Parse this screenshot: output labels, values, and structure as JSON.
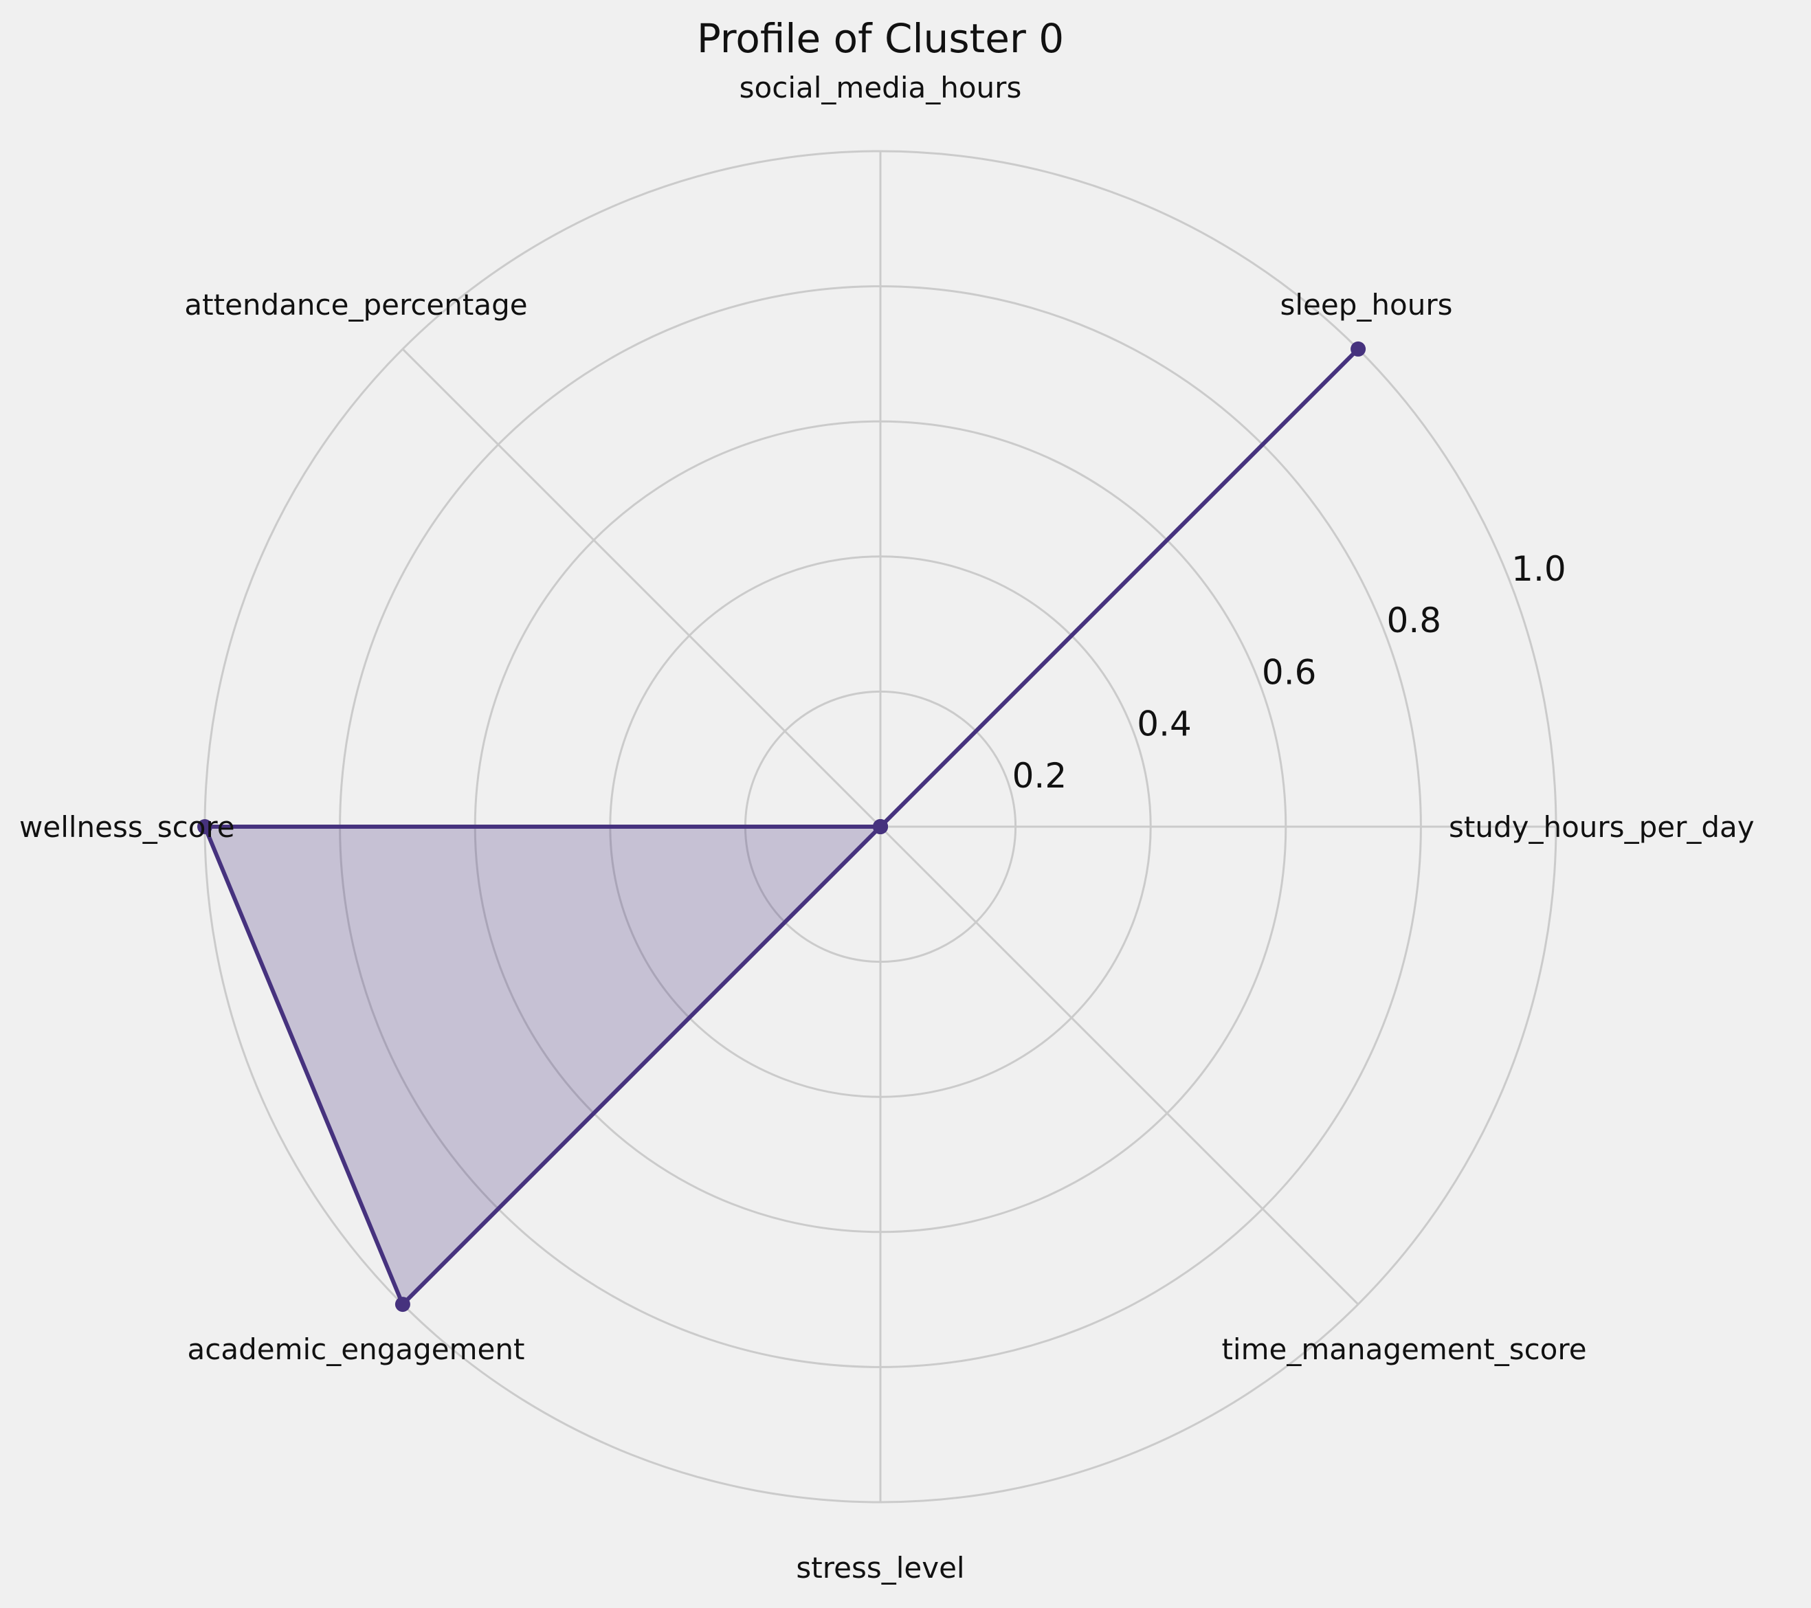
{
  "chart_data": {
    "type": "radar",
    "title": "Profile of Cluster 0",
    "axes": [
      "study_hours_per_day",
      "sleep_hours",
      "social_media_hours",
      "attendance_percentage",
      "wellness_score",
      "academic_engagement",
      "stress_level",
      "time_management_score"
    ],
    "radial_ticks": [
      "0.2",
      "0.4",
      "0.6",
      "0.8",
      "1.0"
    ],
    "rlim": [
      0,
      1.0
    ],
    "series": [
      {
        "values": [
          0,
          1.0,
          0,
          0,
          1.0,
          1.0,
          0,
          0
        ]
      }
    ],
    "grid": true,
    "colors": {
      "line": "#46327e",
      "fill": "#46327e",
      "grid": "#cbcbcb",
      "background": "#f0f0f0"
    }
  }
}
